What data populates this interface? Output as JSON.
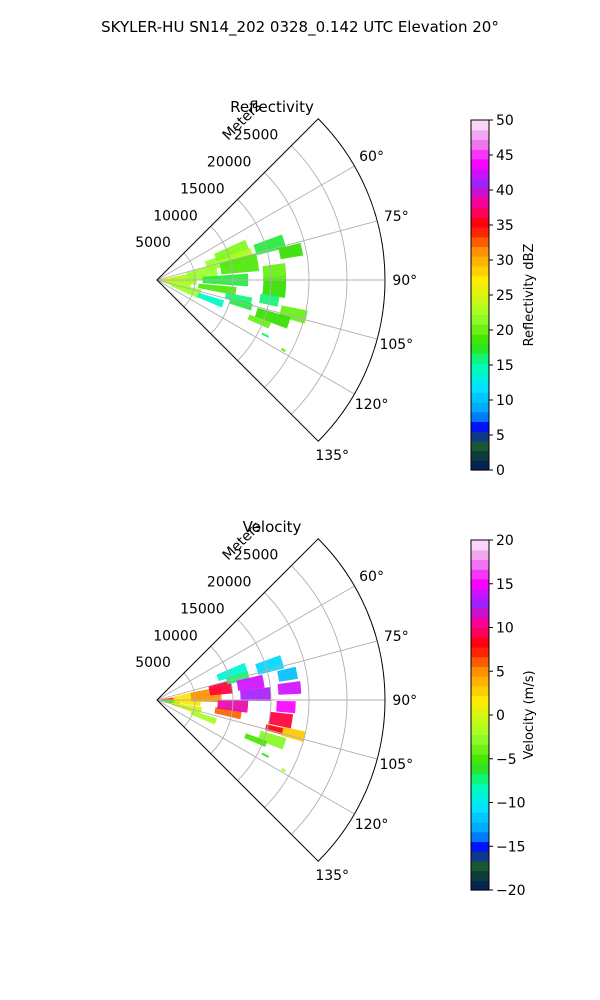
{
  "figure": {
    "suptitle": "SKYLER-HU  SN14_202  0328_0.142 UTC Elevation 20°"
  },
  "chart_data": [
    {
      "type": "heatmap",
      "projection": "polar-sector",
      "title": "Reflectivity",
      "radial_axis_label": "Meters",
      "radial_ticks": [
        5000,
        10000,
        15000,
        20000,
        25000
      ],
      "radial_tick_labels": [
        "5000",
        "10000",
        "15000",
        "20000",
        "25000"
      ],
      "rmax": 30000,
      "azimuth_range_deg": [
        45,
        135
      ],
      "azimuth_ticks_deg": [
        60,
        75,
        90,
        105,
        120,
        135
      ],
      "azimuth_tick_labels": [
        "60°",
        "75°",
        "90°",
        "105°",
        "120°",
        "135°"
      ],
      "grid": true,
      "colorbar": {
        "label": "Reflectivity dBZ",
        "vmin": 0,
        "vmax": 50,
        "ticks": [
          0,
          5,
          10,
          15,
          20,
          25,
          30,
          35,
          40,
          45,
          50
        ],
        "tick_labels": [
          "0",
          "5",
          "10",
          "15",
          "20",
          "25",
          "30",
          "35",
          "40",
          "45",
          "50"
        ],
        "stops": [
          {
            "v": 0,
            "c": "#001a5c"
          },
          {
            "v": 2,
            "c": "#0c3a3a"
          },
          {
            "v": 4,
            "c": "#1e6030"
          },
          {
            "v": 6,
            "c": "#0000ff"
          },
          {
            "v": 8,
            "c": "#0096ff"
          },
          {
            "v": 12,
            "c": "#00e6ff"
          },
          {
            "v": 15,
            "c": "#00ffb0"
          },
          {
            "v": 18,
            "c": "#34e000"
          },
          {
            "v": 22,
            "c": "#9aff2a"
          },
          {
            "v": 27,
            "c": "#ffee00"
          },
          {
            "v": 31,
            "c": "#ff9a00"
          },
          {
            "v": 35,
            "c": "#ff0000"
          },
          {
            "v": 38,
            "c": "#ff0090"
          },
          {
            "v": 41,
            "c": "#a020ff"
          },
          {
            "v": 44,
            "c": "#ff00ff"
          },
          {
            "v": 47,
            "c": "#ee88ee"
          },
          {
            "v": 50,
            "c": "#ffeeff"
          }
        ]
      },
      "cells": [
        {
          "az": 87,
          "r": 800,
          "dr": 1800,
          "daz": 8,
          "v": 29
        },
        {
          "az": 86,
          "r": 1500,
          "dr": 3500,
          "daz": 14,
          "v": 27
        },
        {
          "az": 88,
          "r": 3500,
          "dr": 3500,
          "daz": 18,
          "v": 23
        },
        {
          "az": 83,
          "r": 6000,
          "dr": 4000,
          "daz": 15,
          "v": 22
        },
        {
          "az": 100,
          "r": 2500,
          "dr": 4000,
          "daz": 20,
          "v": 23
        },
        {
          "az": 108,
          "r": 4000,
          "dr": 4000,
          "daz": 12,
          "v": 22
        },
        {
          "az": 74,
          "r": 9000,
          "dr": 4500,
          "daz": 10,
          "v": 22
        },
        {
          "az": 69,
          "r": 10500,
          "dr": 4500,
          "daz": 7,
          "v": 21
        },
        {
          "az": 74,
          "r": 11500,
          "dr": 3000,
          "daz": 6,
          "v": 23
        },
        {
          "az": 80,
          "r": 11000,
          "dr": 5000,
          "daz": 10,
          "v": 19
        },
        {
          "az": 90,
          "r": 9000,
          "dr": 6000,
          "daz": 8,
          "v": 17
        },
        {
          "az": 93,
          "r": 15500,
          "dr": 3000,
          "daz": 10,
          "v": 18
        },
        {
          "az": 86,
          "r": 15500,
          "dr": 3000,
          "daz": 7,
          "v": 20
        },
        {
          "az": 73,
          "r": 15500,
          "dr": 4000,
          "daz": 6,
          "v": 17
        },
        {
          "az": 78,
          "r": 18000,
          "dr": 3000,
          "daz": 5,
          "v": 18
        },
        {
          "az": 98,
          "r": 8000,
          "dr": 5000,
          "daz": 6,
          "v": 19
        },
        {
          "az": 103,
          "r": 11000,
          "dr": 3500,
          "daz": 5,
          "v": 16
        },
        {
          "az": 110,
          "r": 7500,
          "dr": 3500,
          "daz": 6,
          "v": 14
        },
        {
          "az": 106,
          "r": 11500,
          "dr": 3000,
          "daz": 4,
          "v": 17
        },
        {
          "az": 100,
          "r": 15000,
          "dr": 2500,
          "daz": 5,
          "v": 16
        },
        {
          "az": 104,
          "r": 18500,
          "dr": 3500,
          "daz": 5,
          "v": 20
        },
        {
          "az": 108,
          "r": 16000,
          "dr": 4500,
          "daz": 5,
          "v": 18
        },
        {
          "az": 112,
          "r": 14500,
          "dr": 3000,
          "daz": 3,
          "v": 20
        },
        {
          "az": 117,
          "r": 16000,
          "dr": 1000,
          "daz": 1,
          "v": 16
        },
        {
          "az": 119,
          "r": 19000,
          "dr": 600,
          "daz": 1,
          "v": 20
        }
      ]
    },
    {
      "type": "heatmap",
      "projection": "polar-sector",
      "title": "Velocity",
      "radial_axis_label": "Meters",
      "radial_ticks": [
        5000,
        10000,
        15000,
        20000,
        25000
      ],
      "radial_tick_labels": [
        "5000",
        "10000",
        "15000",
        "20000",
        "25000"
      ],
      "rmax": 30000,
      "azimuth_range_deg": [
        45,
        135
      ],
      "azimuth_ticks_deg": [
        60,
        75,
        90,
        105,
        120,
        135
      ],
      "azimuth_tick_labels": [
        "60°",
        "75°",
        "90°",
        "105°",
        "120°",
        "135°"
      ],
      "grid": true,
      "colorbar": {
        "label": "Velocity (m/s)",
        "vmin": -20,
        "vmax": 20,
        "ticks": [
          -20,
          -15,
          -10,
          -5,
          0,
          5,
          10,
          15,
          20
        ],
        "tick_labels": [
          "−20",
          "−15",
          "−10",
          "−5",
          "0",
          "5",
          "10",
          "15",
          "20"
        ],
        "stops": [
          {
            "v": -20,
            "c": "#001a5c"
          },
          {
            "v": -18.4,
            "c": "#0c3a3a"
          },
          {
            "v": -16.8,
            "c": "#1e6030"
          },
          {
            "v": -15.2,
            "c": "#0000ff"
          },
          {
            "v": -13.6,
            "c": "#0096ff"
          },
          {
            "v": -10.4,
            "c": "#00e6ff"
          },
          {
            "v": -8,
            "c": "#00ffb0"
          },
          {
            "v": -5.6,
            "c": "#34e000"
          },
          {
            "v": -2.4,
            "c": "#9aff2a"
          },
          {
            "v": 1.6,
            "c": "#ffee00"
          },
          {
            "v": 4.8,
            "c": "#ff9a00"
          },
          {
            "v": 8,
            "c": "#ff0000"
          },
          {
            "v": 10.4,
            "c": "#ff0090"
          },
          {
            "v": 12.8,
            "c": "#a020ff"
          },
          {
            "v": 15.2,
            "c": "#ff00ff"
          },
          {
            "v": 17.6,
            "c": "#ee88ee"
          },
          {
            "v": 20,
            "c": "#ffeeff"
          }
        ]
      },
      "cells": [
        {
          "az": 86,
          "r": 1200,
          "dr": 2000,
          "daz": 10,
          "v": 7
        },
        {
          "az": 96,
          "r": 1500,
          "dr": 3000,
          "daz": 14,
          "v": -5
        },
        {
          "az": 88,
          "r": 4000,
          "dr": 3500,
          "daz": 20,
          "v": 2
        },
        {
          "az": 104,
          "r": 4000,
          "dr": 4000,
          "daz": 10,
          "v": 0
        },
        {
          "az": 110,
          "r": 6500,
          "dr": 3500,
          "daz": 6,
          "v": -2
        },
        {
          "az": 85,
          "r": 6500,
          "dr": 4000,
          "daz": 14,
          "v": 5
        },
        {
          "az": 80,
          "r": 8500,
          "dr": 3000,
          "daz": 10,
          "v": 9
        },
        {
          "az": 100,
          "r": 9500,
          "dr": 3500,
          "daz": 6,
          "v": 6
        },
        {
          "az": 94,
          "r": 10000,
          "dr": 4000,
          "daz": 8,
          "v": 11
        },
        {
          "az": 70,
          "r": 10500,
          "dr": 4000,
          "daz": 6,
          "v": -9
        },
        {
          "az": 75,
          "r": 11000,
          "dr": 3000,
          "daz": 5,
          "v": -7
        },
        {
          "az": 80,
          "r": 12500,
          "dr": 3500,
          "daz": 7,
          "v": 14
        },
        {
          "az": 87,
          "r": 13000,
          "dr": 4000,
          "daz": 7,
          "v": 13
        },
        {
          "az": 73,
          "r": 15500,
          "dr": 3500,
          "daz": 6,
          "v": -11
        },
        {
          "az": 79,
          "r": 17500,
          "dr": 2500,
          "daz": 5,
          "v": -12
        },
        {
          "az": 85,
          "r": 17500,
          "dr": 3000,
          "daz": 5,
          "v": 14
        },
        {
          "az": 93,
          "r": 17000,
          "dr": 2500,
          "daz": 5,
          "v": 15
        },
        {
          "az": 99,
          "r": 16500,
          "dr": 3000,
          "daz": 6,
          "v": 9
        },
        {
          "az": 104,
          "r": 16000,
          "dr": 2500,
          "daz": 3,
          "v": 8
        },
        {
          "az": 104,
          "r": 18500,
          "dr": 3000,
          "daz": 4,
          "v": 3
        },
        {
          "az": 109,
          "r": 16000,
          "dr": 3500,
          "daz": 5,
          "v": -3
        },
        {
          "az": 112,
          "r": 14000,
          "dr": 3000,
          "daz": 3,
          "v": -5
        },
        {
          "az": 117,
          "r": 16000,
          "dr": 1000,
          "daz": 1,
          "v": -6
        },
        {
          "az": 119,
          "r": 19000,
          "dr": 600,
          "daz": 1,
          "v": -2
        }
      ]
    }
  ]
}
